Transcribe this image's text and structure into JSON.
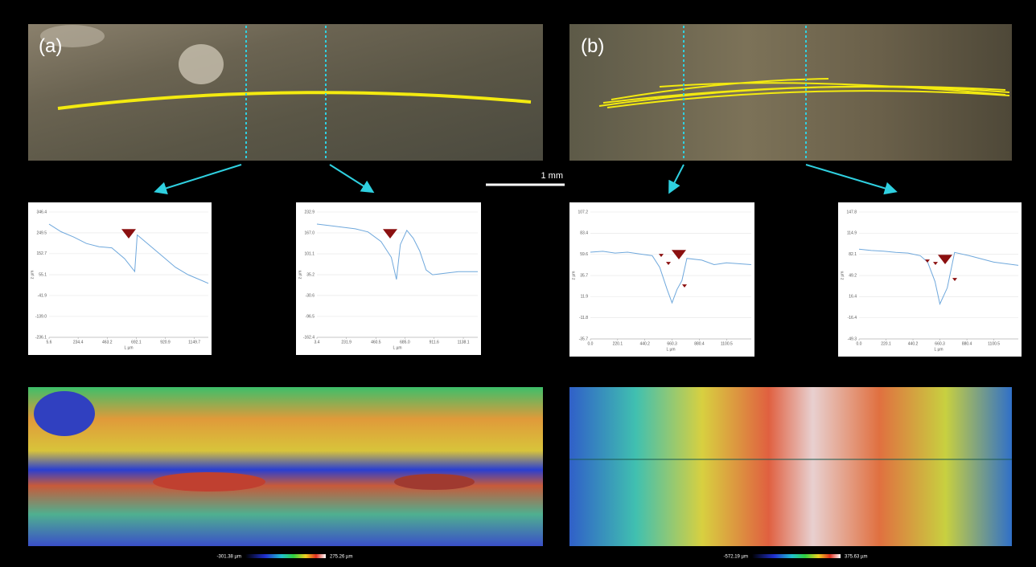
{
  "figure": {
    "panel_a_label": "(a)",
    "panel_b_label": "(b)",
    "scale_label": "1 mm",
    "colorbar_a_min": "-301.38 µm",
    "colorbar_a_max": "275.26 µm",
    "colorbar_b_min": "-572.19 µm",
    "colorbar_b_max": "375.63 µm"
  },
  "chart_data": [
    {
      "type": "line",
      "xlabel": "L µm",
      "ylabel": "z µm",
      "color": "#6fa8dc",
      "grid": true,
      "x": [
        5.6,
        100,
        200,
        300,
        400,
        500,
        600,
        680,
        700,
        800,
        900,
        1000,
        1100,
        1260
      ],
      "values": [
        290,
        255,
        230,
        200,
        185,
        180,
        130,
        70,
        240,
        190,
        140,
        90,
        55,
        15
      ],
      "xlim": [
        5.6,
        1260
      ],
      "ylim": [
        -236.1,
        346.4
      ],
      "xticks": [
        5.6,
        234.4,
        463.2,
        692.1,
        920.9,
        1149.7
      ],
      "yticks": [
        -236.1,
        {
          "value": -139.0,
          "label": "-139.0"
        },
        -41.9,
        55.1,
        152.7,
        249.5,
        346.4
      ]
    },
    {
      "type": "line",
      "xlabel": "L µm",
      "ylabel": "z µm",
      "color": "#6fa8dc",
      "grid": true,
      "x": [
        3.4,
        100,
        200,
        300,
        400,
        500,
        580,
        620,
        650,
        700,
        750,
        800,
        850,
        900,
        1000,
        1100,
        1250
      ],
      "values": [
        195,
        190,
        185,
        180,
        170,
        140,
        90,
        20,
        130,
        175,
        150,
        110,
        50,
        35,
        40,
        45,
        45
      ],
      "xlim": [
        3.4,
        1250
      ],
      "ylim": [
        -162.4,
        232.9
      ],
      "xticks": [
        3.4,
        231.9,
        460.5,
        {
          "value": 685.0,
          "label": "685.0"
        },
        911.6,
        1138.1
      ],
      "yticks": [
        -162.4,
        -96.5,
        -30.6,
        35.2,
        101.1,
        {
          "value": 167.0,
          "label": "167.0"
        },
        232.9
      ]
    },
    {
      "type": "line",
      "xlabel": "L µm",
      "ylabel": "z µm",
      "color": "#6fa8dc",
      "grid": true,
      "x": [
        0,
        100,
        200,
        300,
        400,
        500,
        560,
        620,
        660,
        700,
        740,
        780,
        900,
        1000,
        1100,
        1300
      ],
      "values": [
        62,
        63,
        61,
        62,
        60,
        58,
        45,
        20,
        5,
        20,
        30,
        55,
        53,
        48,
        50,
        48
      ],
      "xlim": [
        0,
        1300
      ],
      "ylim": [
        -35.7,
        107.2
      ],
      "xticks": [
        {
          "value": 0,
          "label": "0.0"
        },
        220.1,
        440.2,
        660.3,
        880.4,
        1100.5
      ],
      "yticks": [
        -35.7,
        -11.8,
        11.9,
        35.7,
        59.6,
        83.4,
        107.2
      ]
    },
    {
      "type": "line",
      "xlabel": "L µm",
      "ylabel": "z µm",
      "color": "#6fa8dc",
      "grid": true,
      "x": [
        0,
        100,
        200,
        300,
        400,
        500,
        560,
        620,
        660,
        720,
        780,
        900,
        1000,
        1100,
        1300
      ],
      "values": [
        90,
        88,
        87,
        85,
        84,
        80,
        70,
        40,
        5,
        30,
        85,
        80,
        75,
        70,
        65
      ],
      "xlim": [
        0,
        1300
      ],
      "ylim": [
        -49.3,
        147.8
      ],
      "xticks": [
        {
          "value": 0,
          "label": "0.0"
        },
        220.1,
        440.2,
        660.3,
        880.4,
        1100.5
      ],
      "yticks": [
        -49.3,
        -16.4,
        16.4,
        49.2,
        82.1,
        114.9,
        147.8
      ]
    }
  ]
}
